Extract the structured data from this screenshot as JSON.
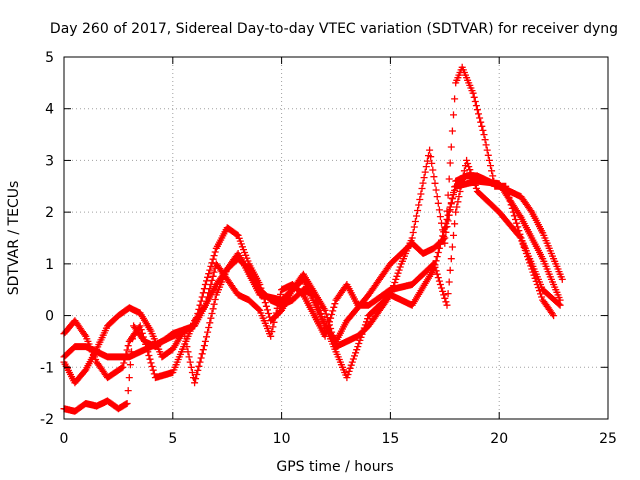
{
  "chart_data": {
    "type": "scatter",
    "title": "Day 260 of 2017, Sidereal Day-to-day VTEC variation (SDTVAR) for receiver dyng",
    "xlabel": "GPS time / hours",
    "ylabel": "SDTVAR / TECUs",
    "xlim": [
      0,
      25
    ],
    "ylim": [
      -2,
      5
    ],
    "xticks": [
      0,
      5,
      10,
      15,
      20,
      25
    ],
    "yticks": [
      -2,
      -1,
      0,
      1,
      2,
      3,
      4,
      5
    ],
    "grid": true,
    "marker": "+",
    "series_color": "#ff0000",
    "series": [
      {
        "name": "trace-1",
        "points": [
          [
            0.0,
            -1.8
          ],
          [
            0.5,
            -1.85
          ],
          [
            1.0,
            -1.7
          ],
          [
            1.5,
            -1.75
          ],
          [
            2.0,
            -1.65
          ],
          [
            2.5,
            -1.8
          ],
          [
            2.9,
            -1.7
          ],
          [
            3.2,
            -0.2
          ],
          [
            3.7,
            -0.5
          ],
          [
            4.2,
            -0.6
          ],
          [
            5.0,
            -0.35
          ],
          [
            6.0,
            -0.2
          ],
          [
            7.0,
            0.6
          ],
          [
            8.0,
            1.2
          ],
          [
            9.0,
            0.4
          ],
          [
            10.0,
            0.3
          ],
          [
            11.0,
            0.7
          ],
          [
            12.0,
            -0.2
          ],
          [
            13.0,
            -1.2
          ],
          [
            14.0,
            0.0
          ],
          [
            15.0,
            0.4
          ],
          [
            16.0,
            0.2
          ],
          [
            17.0,
            0.9
          ],
          [
            18.0,
            2.5
          ],
          [
            19.0,
            2.6
          ],
          [
            20.0,
            2.55
          ],
          [
            21.0,
            1.9
          ],
          [
            22.0,
            1.1
          ],
          [
            22.8,
            0.3
          ]
        ]
      },
      {
        "name": "trace-2",
        "points": [
          [
            0.0,
            -0.8
          ],
          [
            0.5,
            -0.6
          ],
          [
            1.0,
            -0.6
          ],
          [
            1.5,
            -0.7
          ],
          [
            2.0,
            -0.8
          ],
          [
            3.0,
            -0.8
          ],
          [
            4.0,
            -0.6
          ],
          [
            5.0,
            -0.4
          ],
          [
            6.0,
            -0.2
          ],
          [
            6.5,
            0.6
          ],
          [
            7.0,
            1.3
          ],
          [
            7.5,
            1.7
          ],
          [
            8.0,
            1.55
          ],
          [
            8.5,
            1.0
          ],
          [
            9.0,
            0.6
          ],
          [
            9.5,
            -0.1
          ],
          [
            10.0,
            0.1
          ],
          [
            10.5,
            0.5
          ],
          [
            11.0,
            0.8
          ],
          [
            12.0,
            0.1
          ],
          [
            12.5,
            -0.6
          ],
          [
            13.5,
            -0.4
          ],
          [
            14.0,
            -0.2
          ],
          [
            15.0,
            0.4
          ],
          [
            15.5,
            1.0
          ],
          [
            16.0,
            1.5
          ],
          [
            16.8,
            3.2
          ],
          [
            17.5,
            1.4
          ],
          [
            18.0,
            4.5
          ],
          [
            18.3,
            4.8
          ],
          [
            18.8,
            4.3
          ],
          [
            19.3,
            3.5
          ],
          [
            19.8,
            2.5
          ],
          [
            20.3,
            2.5
          ],
          [
            21.0,
            1.5
          ],
          [
            22.0,
            0.5
          ],
          [
            22.8,
            0.2
          ]
        ]
      },
      {
        "name": "trace-3",
        "points": [
          [
            0.0,
            -0.35
          ],
          [
            0.5,
            -0.1
          ],
          [
            1.0,
            -0.4
          ],
          [
            1.5,
            -0.9
          ],
          [
            2.0,
            -1.2
          ],
          [
            2.7,
            -1.0
          ],
          [
            3.0,
            -0.5
          ],
          [
            3.5,
            -0.2
          ],
          [
            4.2,
            -1.2
          ],
          [
            5.0,
            -1.1
          ],
          [
            5.5,
            -0.6
          ],
          [
            6.0,
            -0.1
          ],
          [
            6.5,
            0.2
          ],
          [
            7.0,
            1.0
          ],
          [
            7.5,
            0.7
          ],
          [
            8.0,
            0.4
          ],
          [
            8.5,
            0.3
          ],
          [
            9.0,
            0.1
          ],
          [
            9.5,
            -0.4
          ],
          [
            10.0,
            0.5
          ],
          [
            10.5,
            0.6
          ],
          [
            11.0,
            0.4
          ],
          [
            12.0,
            -0.4
          ],
          [
            12.5,
            0.3
          ],
          [
            13.0,
            0.6
          ],
          [
            13.5,
            0.2
          ],
          [
            14.0,
            0.2
          ],
          [
            15.0,
            0.5
          ],
          [
            16.0,
            0.6
          ],
          [
            17.0,
            1.0
          ],
          [
            17.6,
            0.2
          ],
          [
            18.0,
            2.0
          ],
          [
            18.5,
            3.0
          ],
          [
            19.0,
            2.4
          ],
          [
            19.5,
            2.2
          ],
          [
            20.0,
            2.0
          ],
          [
            21.0,
            1.5
          ],
          [
            22.0,
            0.3
          ],
          [
            22.5,
            0.0
          ]
        ]
      },
      {
        "name": "trace-4",
        "points": [
          [
            0.0,
            -0.9
          ],
          [
            0.5,
            -1.3
          ],
          [
            1.0,
            -1.05
          ],
          [
            1.5,
            -0.65
          ],
          [
            2.0,
            -0.2
          ],
          [
            2.5,
            0.0
          ],
          [
            3.0,
            0.15
          ],
          [
            3.5,
            0.05
          ],
          [
            4.0,
            -0.3
          ],
          [
            4.5,
            -0.8
          ],
          [
            5.0,
            -0.65
          ],
          [
            5.5,
            -0.3
          ],
          [
            6.0,
            -1.3
          ],
          [
            6.5,
            -0.5
          ],
          [
            7.0,
            0.4
          ],
          [
            7.5,
            0.9
          ],
          [
            8.0,
            1.1
          ],
          [
            8.5,
            0.9
          ],
          [
            9.0,
            0.5
          ],
          [
            9.5,
            0.3
          ],
          [
            10.0,
            0.2
          ],
          [
            10.5,
            0.3
          ],
          [
            11.0,
            0.5
          ],
          [
            11.5,
            0.4
          ],
          [
            12.0,
            -0.2
          ],
          [
            12.5,
            -0.5
          ],
          [
            13.0,
            -0.1
          ],
          [
            14.0,
            0.4
          ],
          [
            15.0,
            1.0
          ],
          [
            15.5,
            1.2
          ],
          [
            16.0,
            1.4
          ],
          [
            16.5,
            1.2
          ],
          [
            17.0,
            1.3
          ],
          [
            17.5,
            1.5
          ],
          [
            18.0,
            2.6
          ],
          [
            18.5,
            2.7
          ],
          [
            19.0,
            2.7
          ],
          [
            19.5,
            2.6
          ],
          [
            20.0,
            2.5
          ],
          [
            20.5,
            2.4
          ],
          [
            21.0,
            2.3
          ],
          [
            21.5,
            2.0
          ],
          [
            22.0,
            1.6
          ],
          [
            22.5,
            1.1
          ],
          [
            22.9,
            0.7
          ]
        ]
      }
    ]
  }
}
